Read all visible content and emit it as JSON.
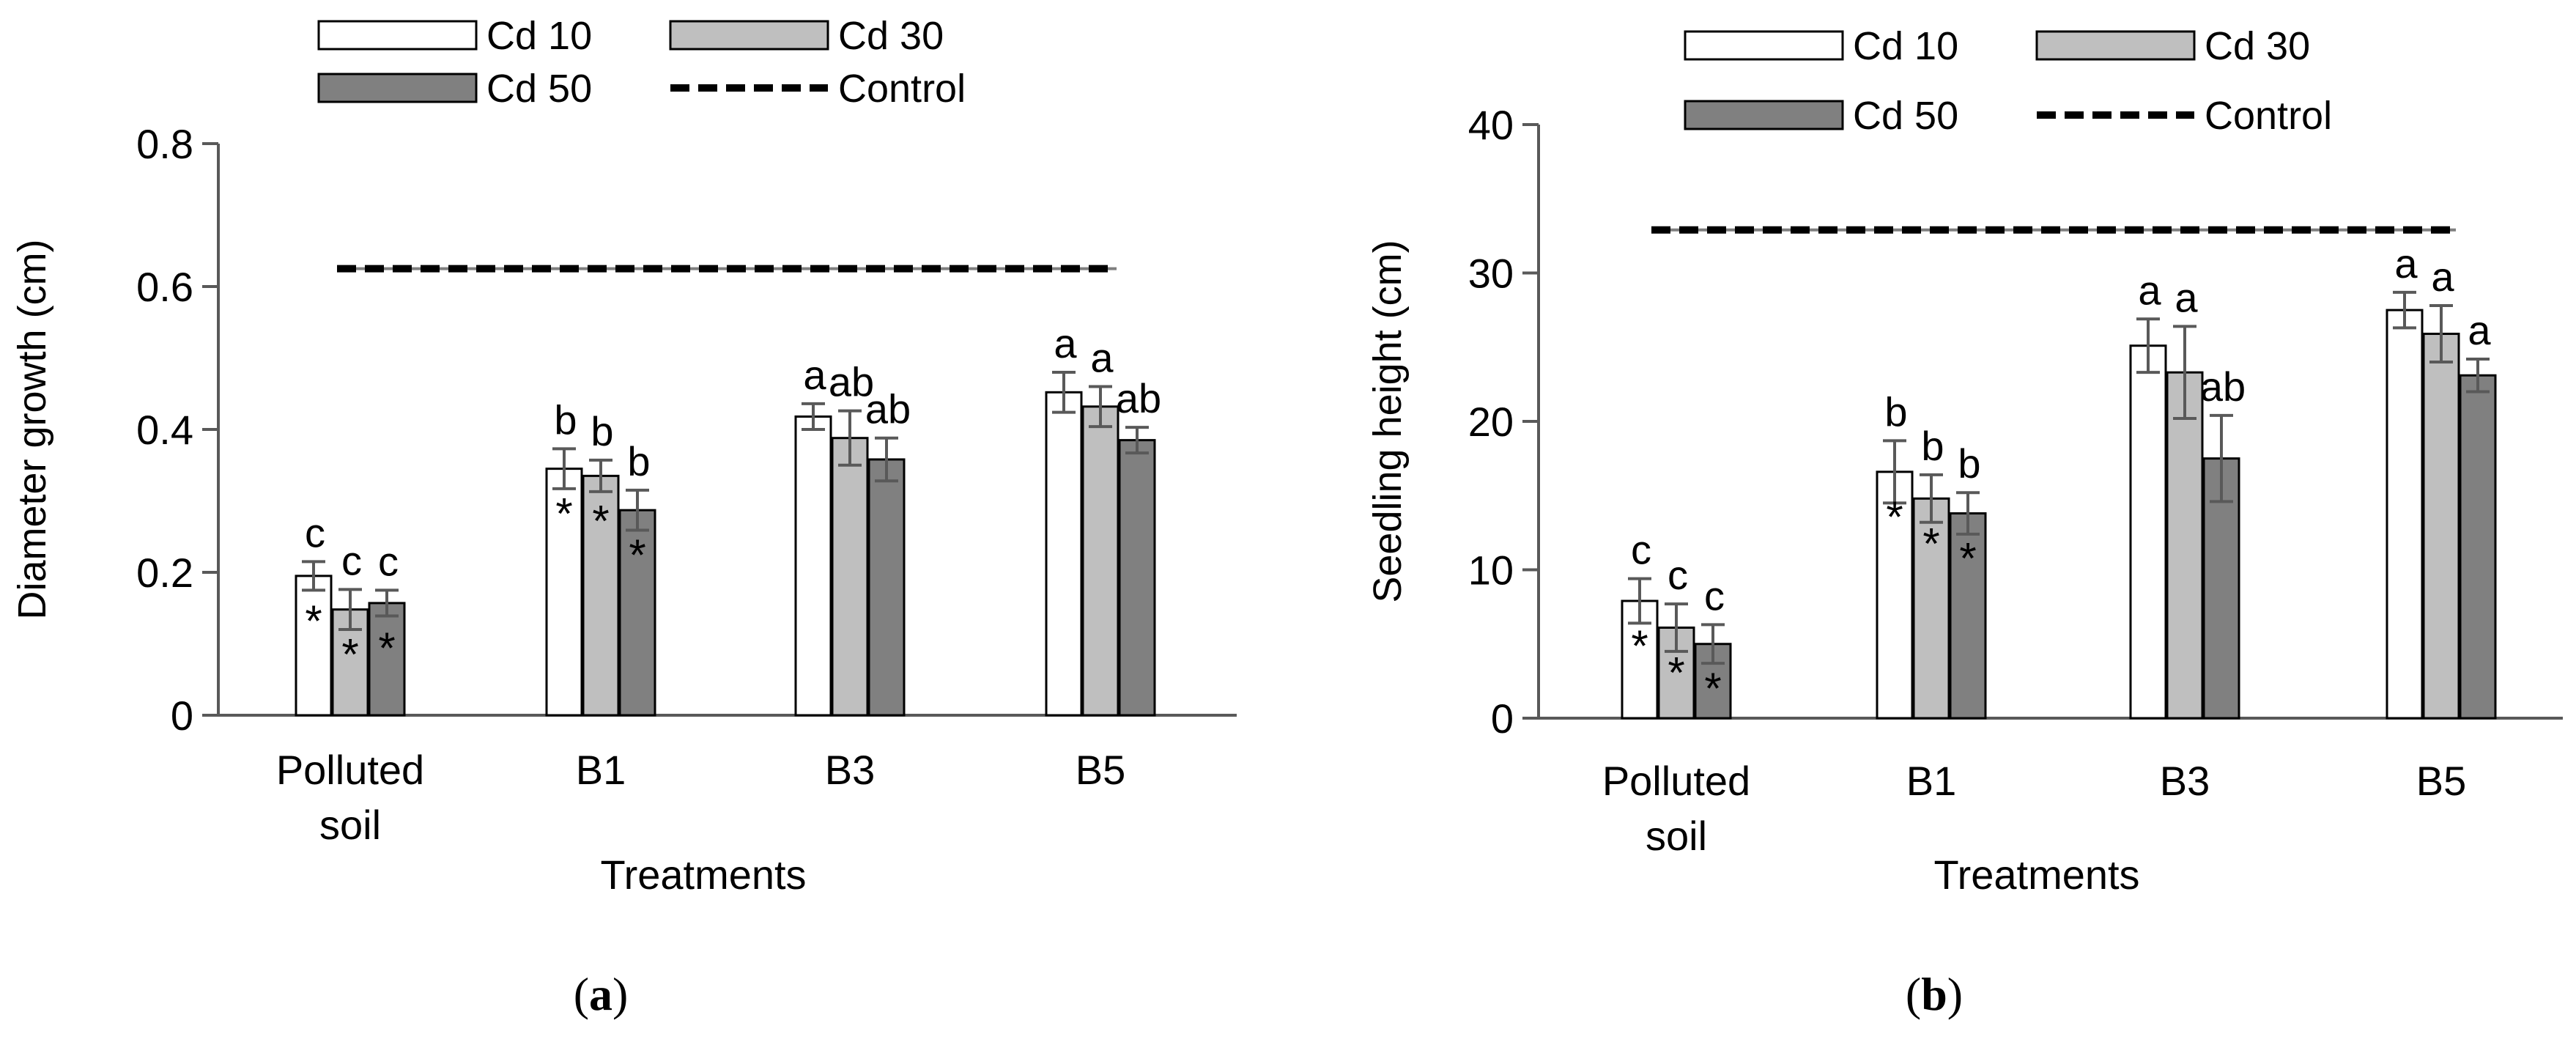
{
  "chart_data": [
    {
      "type": "bar",
      "title": "",
      "panel_label": "a",
      "xlabel": "Treatments",
      "ylabel": "Diameter growth (cm)",
      "ylim": [
        0,
        0.8
      ],
      "yticks": [
        "0",
        "0.2",
        "0.4",
        "0.6",
        "0.8"
      ],
      "ytick_values": [
        0,
        0.2,
        0.4,
        0.6,
        0.8
      ],
      "categories": [
        [
          "Polluted",
          "soil"
        ],
        [
          "B1"
        ],
        [
          "B3"
        ],
        [
          "B5"
        ]
      ],
      "series": [
        {
          "name": "Cd 10",
          "values": [
            0.195,
            0.345,
            0.418,
            0.452
          ],
          "errors": [
            0.02,
            0.028,
            0.018,
            0.028
          ],
          "letters": [
            "c",
            "b",
            "a",
            "a"
          ],
          "stars": [
            "*",
            "*",
            "",
            ""
          ],
          "color": "#ffffff"
        },
        {
          "name": "Cd 30",
          "values": [
            0.148,
            0.335,
            0.388,
            0.432
          ],
          "errors": [
            0.028,
            0.022,
            0.038,
            0.028
          ],
          "letters": [
            "c",
            "b",
            "ab",
            "a"
          ],
          "stars": [
            "*",
            "*",
            "",
            ""
          ],
          "color": "#bfbfbf"
        },
        {
          "name": "Cd 50",
          "values": [
            0.157,
            0.287,
            0.358,
            0.385
          ],
          "errors": [
            0.018,
            0.028,
            0.03,
            0.018
          ],
          "letters": [
            "c",
            "b",
            "ab",
            "ab"
          ],
          "stars": [
            "*",
            "*",
            "",
            ""
          ],
          "color": "#808080"
        }
      ],
      "control": {
        "name": "Control",
        "value": 0.625
      },
      "legend": {
        "placement": "top-center",
        "entries": [
          "Cd 10",
          "Cd 30",
          "Cd 50",
          "Control"
        ]
      }
    },
    {
      "type": "bar",
      "title": "",
      "panel_label": "b",
      "xlabel": "Treatments",
      "ylabel": "Seedling height (cm)",
      "ylim": [
        0,
        40
      ],
      "yticks": [
        "0",
        "10",
        "20",
        "30",
        "40"
      ],
      "ytick_values": [
        0,
        10,
        20,
        30,
        40
      ],
      "categories": [
        [
          "Polluted",
          "soil"
        ],
        [
          "B1"
        ],
        [
          "B3"
        ],
        [
          "B5"
        ]
      ],
      "series": [
        {
          "name": "Cd 10",
          "values": [
            7.9,
            16.6,
            25.1,
            27.5
          ],
          "errors": [
            1.5,
            2.1,
            1.8,
            1.2
          ],
          "letters": [
            "c",
            "b",
            "a",
            "a"
          ],
          "stars": [
            "*",
            "*",
            "",
            ""
          ],
          "color": "#ffffff"
        },
        {
          "name": "Cd 30",
          "values": [
            6.1,
            14.8,
            23.3,
            25.9
          ],
          "errors": [
            1.6,
            1.6,
            3.1,
            1.9
          ],
          "letters": [
            "c",
            "b",
            "a",
            "a"
          ],
          "stars": [
            "*",
            "*",
            "",
            ""
          ],
          "color": "#bfbfbf"
        },
        {
          "name": "Cd 50",
          "values": [
            5.0,
            13.8,
            17.5,
            23.1
          ],
          "errors": [
            1.3,
            1.4,
            2.9,
            1.1
          ],
          "letters": [
            "c",
            "b",
            "ab",
            "a"
          ],
          "stars": [
            "*",
            "*",
            "",
            ""
          ],
          "color": "#808080"
        }
      ],
      "control": {
        "name": "Control",
        "value": 32.9
      },
      "legend": {
        "placement": "top-center",
        "entries": [
          "Cd 10",
          "Cd 30",
          "Cd 50",
          "Control"
        ]
      }
    }
  ]
}
